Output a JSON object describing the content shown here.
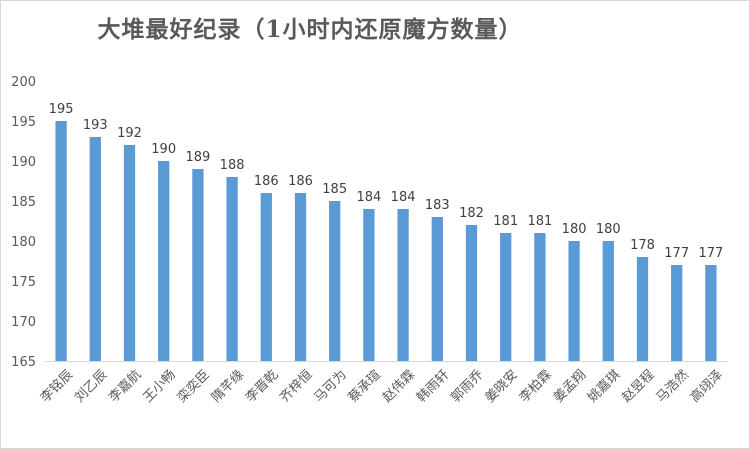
{
  "chart_data": {
    "type": "bar",
    "title": "大堆最好纪录（1小时内还原魔方数量）",
    "xlabel": "",
    "ylabel": "",
    "ylim": [
      165,
      200
    ],
    "yticks": [
      165,
      170,
      175,
      180,
      185,
      190,
      195,
      200
    ],
    "grid": false,
    "legend": "none",
    "categories": [
      "李铭辰",
      "刘乙辰",
      "李嘉航",
      "王小畅",
      "栾奕臣",
      "隋芊缘",
      "李晋乾",
      "齐梓恒",
      "马可为",
      "蔡承瑄",
      "赵伟霖",
      "韩雨轩",
      "郭雨乔",
      "姜晓安",
      "李柏霖",
      "姜孟翔",
      "姚嘉琪",
      "赵昱程",
      "马浩然",
      "高翊泽"
    ],
    "values": [
      195,
      193,
      192,
      190,
      189,
      188,
      186,
      186,
      185,
      184,
      184,
      183,
      182,
      181,
      181,
      180,
      180,
      178,
      177,
      177
    ],
    "colors": {
      "bar": "#5b9bd5",
      "axis": "#d9d9d9",
      "text": "#595959",
      "label": "#404040"
    }
  }
}
